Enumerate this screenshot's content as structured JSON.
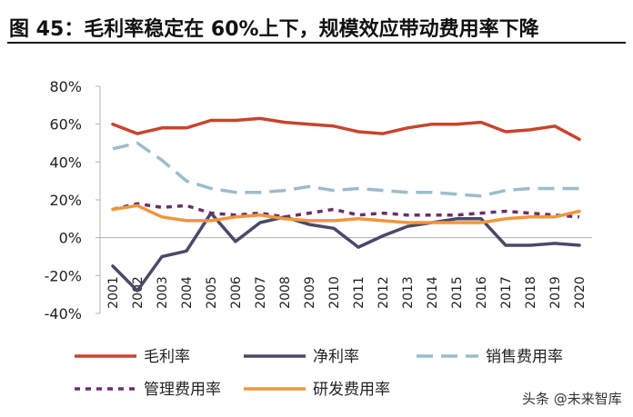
{
  "header": {
    "title": "图 45：毛利率稳定在 60%上下，规模效应带动费用率下降"
  },
  "watermark": "头条 @未来智库",
  "chart_data": {
    "type": "line",
    "categories": [
      "2001",
      "2002",
      "2003",
      "2004",
      "2005",
      "2006",
      "2007",
      "2008",
      "2009",
      "2010",
      "2011",
      "2012",
      "2013",
      "2014",
      "2015",
      "2016",
      "2017",
      "2018",
      "2019",
      "2020"
    ],
    "ylim": [
      -40,
      80
    ],
    "yticks": [
      -40,
      -20,
      0,
      20,
      40,
      60,
      80
    ],
    "ytick_labels": [
      "-40%",
      "-20%",
      "0%",
      "20%",
      "40%",
      "60%",
      "80%"
    ],
    "grid": false,
    "legend_position": "bottom",
    "series": [
      {
        "name": "毛利率",
        "color": "#c8442b",
        "dash": "solid",
        "values": [
          60,
          55,
          58,
          58,
          62,
          62,
          63,
          61,
          60,
          59,
          56,
          55,
          58,
          60,
          60,
          61,
          56,
          57,
          59,
          52
        ]
      },
      {
        "name": "净利率",
        "color": "#4a4968",
        "dash": "solid",
        "values": [
          -15,
          -28,
          -10,
          -7,
          13,
          -2,
          8,
          11,
          7,
          5,
          -5,
          1,
          6,
          8,
          10,
          10,
          -4,
          -4,
          -3,
          -4
        ]
      },
      {
        "name": "销售费用率",
        "color": "#9bbccb",
        "dash": "longdash",
        "values": [
          47,
          50,
          41,
          30,
          26,
          24,
          24,
          25,
          27,
          25,
          26,
          25,
          24,
          24,
          23,
          22,
          25,
          26,
          26,
          26
        ]
      },
      {
        "name": "管理费用率",
        "color": "#6b2f6b",
        "dash": "shortdash",
        "values": [
          15,
          18,
          16,
          17,
          13,
          12,
          13,
          11,
          13,
          15,
          12,
          13,
          12,
          12,
          12,
          13,
          14,
          13,
          12,
          11
        ]
      },
      {
        "name": "研发费用率",
        "color": "#f0963c",
        "dash": "solid",
        "values": [
          15,
          17,
          11,
          9,
          9,
          11,
          12,
          10,
          9,
          9,
          10,
          9,
          8,
          8,
          8,
          8,
          10,
          11,
          11,
          14
        ]
      }
    ]
  }
}
